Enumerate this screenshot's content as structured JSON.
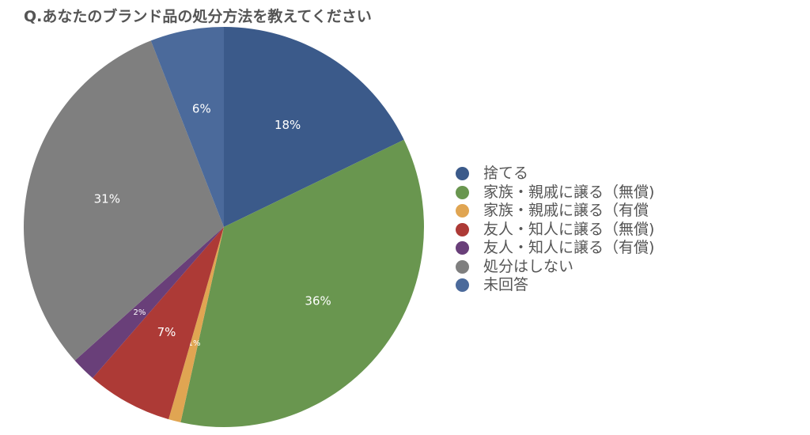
{
  "chart_data": {
    "type": "pie",
    "title": "Q.あなたのブランド品の処分方法を教えてください",
    "start": "top",
    "direction": "clockwise",
    "legend_position": "right",
    "slices": [
      {
        "name": "捨てる",
        "value": 18,
        "label": "18%",
        "color": "#3b5a8a"
      },
      {
        "name": "家族・親戚に譲る（無償)",
        "value": 36,
        "label": "36%",
        "color": "#69964f"
      },
      {
        "name": "家族・親戚に譲る（有償",
        "value": 1,
        "label": "1%",
        "color": "#e0a552"
      },
      {
        "name": "友人・知人に譲る（無償)",
        "value": 7,
        "label": "7%",
        "color": "#ad3a36"
      },
      {
        "name": "友人・知人に譲る（有償)",
        "value": 2,
        "label": "2%",
        "color": "#693f79"
      },
      {
        "name": "処分はしない",
        "value": 31,
        "label": "31%",
        "color": "#7f7f7f"
      },
      {
        "name": "未回答",
        "value": 6,
        "label": "6%",
        "color": "#4b6a9b"
      }
    ]
  }
}
